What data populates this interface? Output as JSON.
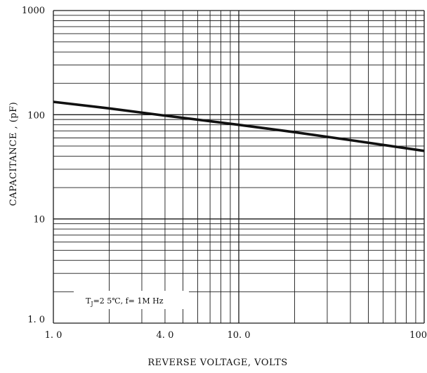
{
  "chart_data": {
    "type": "line",
    "title": "",
    "xlabel": "REVERSE VOLTAGE,  VOLTS",
    "ylabel": "CAPACITANCE , (pF)",
    "x_scale": "log",
    "y_scale": "log",
    "xlim": [
      1,
      100
    ],
    "ylim": [
      1,
      1000
    ],
    "grid": true,
    "x_tick_labels": [
      {
        "value": 1,
        "label": "1. 0"
      },
      {
        "value": 4,
        "label": "4. 0"
      },
      {
        "value": 10,
        "label": "10. 0"
      },
      {
        "value": 100,
        "label": "100"
      }
    ],
    "y_tick_labels": [
      {
        "value": 1,
        "label": "1. 0"
      },
      {
        "value": 10,
        "label": "10"
      },
      {
        "value": 100,
        "label": "100"
      },
      {
        "value": 1000,
        "label": "1000"
      }
    ],
    "series": [
      {
        "x": [
          1,
          2,
          4,
          10,
          20,
          40,
          100
        ],
        "y": [
          133,
          115,
          98,
          80,
          68,
          57,
          45
        ],
        "color": "#111111"
      }
    ],
    "annotation": {
      "t_symbol": "T",
      "j_subscript": "J",
      "rest": "=2 5℃,  f= 1M Hz"
    }
  }
}
